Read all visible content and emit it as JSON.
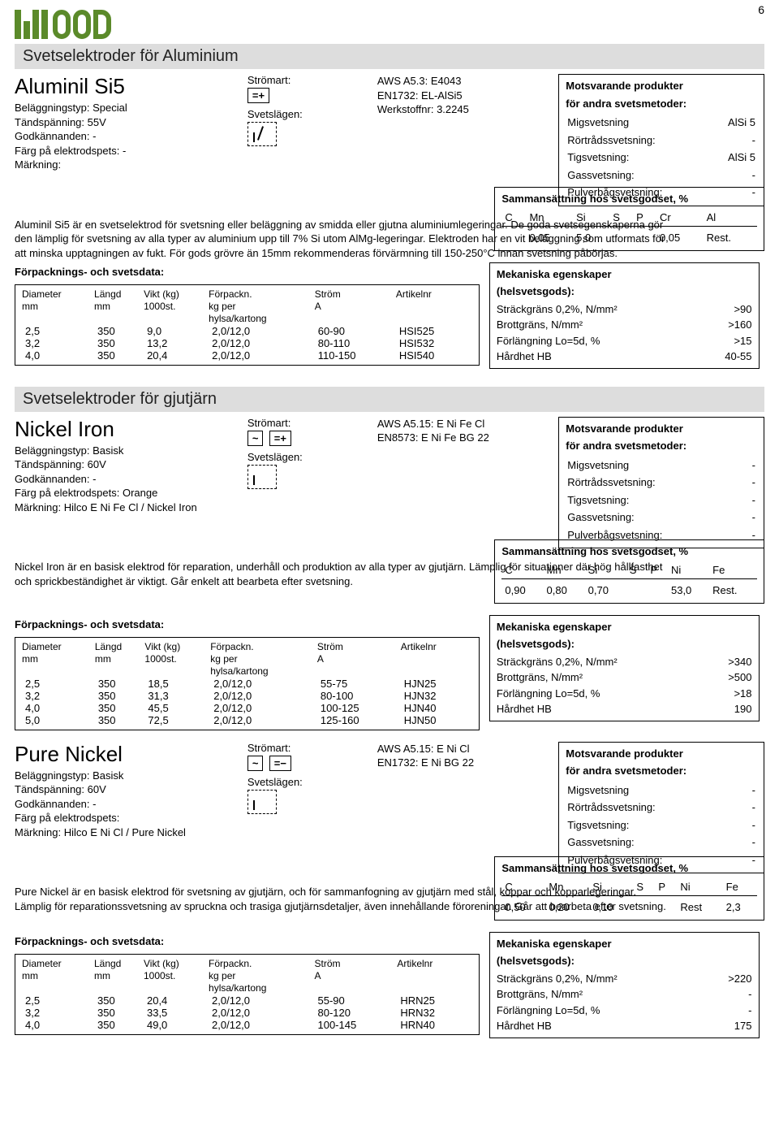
{
  "page_number": "6",
  "section_titles": {
    "alu": "Svetselektroder för Aluminium",
    "gjut": "Svetselektroder för gjutjärn"
  },
  "common_labels": {
    "stromart": "Strömart:",
    "svetslagen": "Svetslägen:",
    "forpack_title": "Förpacknings- och svetsdata:",
    "diameter": "Diameter",
    "mm": "mm",
    "langd": "Längd",
    "vikt": "Vikt (kg)",
    "tusenst": "1000st.",
    "forpackn": "Förpackn.",
    "kgper": "kg per",
    "hylsa": "hylsa/kartong",
    "strom": "Ström",
    "A": "A",
    "artikelnr": "Artikelnr",
    "mots_title": "Motsvarande produkter",
    "mots_title2": "för andra svetsmetoder:",
    "migs": "Migsvetsning",
    "ror": "Rörtrådssvetsning:",
    "tigs": "Tigsvetsning:",
    "gass": "Gassvetsning:",
    "pulv": "Pulverbågsvetsning:",
    "comp_title": "Sammansättning hos svetsgodset, %",
    "mech_title": "Mekaniska egenskaper",
    "mech_sub": "(helsvetsgods):",
    "strack": "Sträckgräns 0,2%, N/mm²",
    "brott": "Brottgräns, N/mm²",
    "forl": "Förlängning Lo=5d, %",
    "hard": "Hårdhet HB"
  },
  "aluminil": {
    "name": "Aluminil Si5",
    "meta": [
      "Beläggningstyp: Special",
      "Tändspänning: 55V",
      "Godkännanden: -",
      "Färg på elektrodspets: -",
      "Märkning:"
    ],
    "stromart_icon": "=+",
    "std": [
      "AWS A5.3: E4043",
      "EN1732: EL-AlSi5",
      "Werkstoffnr: 3.2245"
    ],
    "desc": "Aluminil Si5 är en svetselektrod för svetsning eller beläggning av smidda eller gjutna aluminiumlegeringar. De goda svetsegenskaperna gör den lämplig för svetsning av alla typer av aluminium upp till 7% Si utom AlMg-legeringar. Elektroden har en vit beläggning som utformats för att minska upptagningen av fukt. För gods grövre än 15mm rekommenderas förvärmning till 150-250°C innan svetsning påbörjas.",
    "mots": {
      "migs": "AlSi 5",
      "ror": "-",
      "tigs": "AlSi 5",
      "gass": "-",
      "pulv": "-"
    },
    "comp_cols": [
      "C",
      "Mn",
      "Si",
      "S",
      "P",
      "Cr",
      "Al"
    ],
    "comp_vals": [
      "",
      "0,05",
      "5,0",
      "",
      "",
      "0,05",
      "Rest."
    ],
    "mech": {
      "strack": ">90",
      "brott": ">160",
      "forl": ">15",
      "hard": "40-55"
    },
    "pack": [
      [
        "2,5",
        "350",
        "9,0",
        "2,0/12,0",
        "60-90",
        "HSI525"
      ],
      [
        "3,2",
        "350",
        "13,2",
        "2,0/12,0",
        "80-110",
        "HSI532"
      ],
      [
        "4,0",
        "350",
        "20,4",
        "2,0/12,0",
        "110-150",
        "HSI540"
      ]
    ]
  },
  "nickel": {
    "name": "Nickel Iron",
    "meta": [
      "Beläggningstyp: Basisk",
      "Tändspänning: 60V",
      "Godkännanden: -",
      "Färg på elektrodspets: Orange",
      "Märkning: Hilco E Ni Fe Cl / Nickel Iron"
    ],
    "stromart_icons": [
      "~",
      "=+"
    ],
    "std": [
      "AWS A5.15: E Ni Fe Cl",
      "EN8573: E Ni Fe BG 22"
    ],
    "desc": "Nickel Iron är en basisk elektrod för reparation, underhåll och produktion av alla typer av gjutjärn. Lämplig för situationer där hög hållfasthet och sprickbeständighet är viktigt. Går enkelt att bearbeta efter svetsning.",
    "mots": {
      "migs": "-",
      "ror": "-",
      "tigs": "-",
      "gass": "-",
      "pulv": "-"
    },
    "comp_cols": [
      "C",
      "Mn",
      "Si",
      "S",
      "P",
      "Ni",
      "Fe"
    ],
    "comp_vals": [
      "0,90",
      "0,80",
      "0,70",
      "",
      "",
      "53,0",
      "Rest."
    ],
    "mech": {
      "strack": ">340",
      "brott": ">500",
      "forl": ">18",
      "hard": "190"
    },
    "pack": [
      [
        "2,5",
        "350",
        "18,5",
        "2,0/12,0",
        "55-75",
        "HJN25"
      ],
      [
        "3,2",
        "350",
        "31,3",
        "2,0/12,0",
        "80-100",
        "HJN32"
      ],
      [
        "4,0",
        "350",
        "45,5",
        "2,0/12,0",
        "100-125",
        "HJN40"
      ],
      [
        "5,0",
        "350",
        "72,5",
        "2,0/12,0",
        "125-160",
        "HJN50"
      ]
    ]
  },
  "pure": {
    "name": "Pure Nickel",
    "meta": [
      "Beläggningstyp: Basisk",
      "Tändspänning: 60V",
      "Godkännanden: -",
      "Färg på elektrodspets:",
      "Märkning: Hilco E Ni Cl / Pure Nickel"
    ],
    "stromart_icons": [
      "~",
      "=−"
    ],
    "std": [
      "AWS A5.15: E Ni Cl",
      "EN1732: E Ni BG 22"
    ],
    "desc": "Pure Nickel är en basisk elektrod för svetsning av gjutjärn, och för sammanfogning av gjutjärn med stål, koppar och kopparlegeringar. Lämplig för reparationssvetsning av spruckna och trasiga gjutjärnsdetaljer, även innehållande föroreningar. Går att bearbeta efter svetsning.",
    "mots": {
      "migs": "-",
      "ror": "-",
      "tigs": "-",
      "gass": "-",
      "pulv": "-"
    },
    "comp_cols": [
      "C",
      "Mn",
      "Si",
      "S",
      "P",
      "Ni",
      "Fe"
    ],
    "comp_vals": [
      "0,50",
      "0,20",
      "0,10",
      "",
      "",
      "Rest",
      "2,3"
    ],
    "mech": {
      "strack": ">220",
      "brott": "-",
      "forl": "-",
      "hard": "175"
    },
    "pack": [
      [
        "2,5",
        "350",
        "20,4",
        "2,0/12,0",
        "55-90",
        "HRN25"
      ],
      [
        "3,2",
        "350",
        "33,5",
        "2,0/12,0",
        "80-120",
        "HRN32"
      ],
      [
        "4,0",
        "350",
        "49,0",
        "2,0/12,0",
        "100-145",
        "HRN40"
      ]
    ]
  }
}
